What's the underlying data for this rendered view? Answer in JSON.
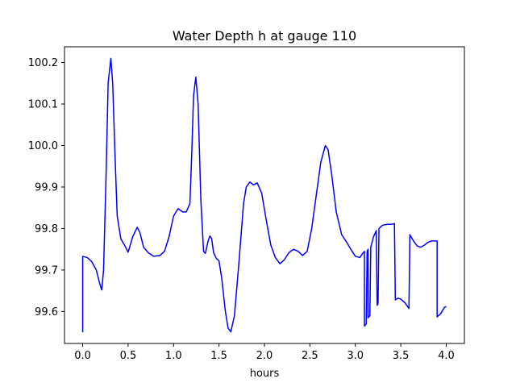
{
  "chart_data": {
    "type": "line",
    "title": "Water Depth h at gauge 110",
    "xlabel": "hours",
    "ylabel": "",
    "xlim": [
      -0.2,
      4.2
    ],
    "ylim": [
      99.523,
      100.238
    ],
    "grid": false,
    "legend": "none",
    "x_ticks": [
      0.0,
      0.5,
      1.0,
      1.5,
      2.0,
      2.5,
      3.0,
      3.5,
      4.0
    ],
    "x_tick_labels": [
      "0.0",
      "0.5",
      "1.0",
      "1.5",
      "2.0",
      "2.5",
      "3.0",
      "3.5",
      "4.0"
    ],
    "y_ticks": [
      99.6,
      99.7,
      99.8,
      99.9,
      100.0,
      100.1,
      100.2
    ],
    "y_tick_labels": [
      "99.6",
      "99.7",
      "99.8",
      "99.9",
      "100.0",
      "100.1",
      "100.2"
    ],
    "series": [
      {
        "color": "#0000ff",
        "points": [
          [
            0.0,
            99.55
          ],
          [
            0.0,
            99.733
          ],
          [
            0.05,
            99.73
          ],
          [
            0.1,
            99.72
          ],
          [
            0.15,
            99.7
          ],
          [
            0.19,
            99.665
          ],
          [
            0.21,
            99.652
          ],
          [
            0.23,
            99.7
          ],
          [
            0.26,
            99.95
          ],
          [
            0.28,
            100.15
          ],
          [
            0.31,
            100.21
          ],
          [
            0.33,
            100.15
          ],
          [
            0.36,
            99.95
          ],
          [
            0.38,
            99.83
          ],
          [
            0.42,
            99.775
          ],
          [
            0.46,
            99.76
          ],
          [
            0.5,
            99.743
          ],
          [
            0.55,
            99.78
          ],
          [
            0.6,
            99.803
          ],
          [
            0.63,
            99.79
          ],
          [
            0.67,
            99.755
          ],
          [
            0.72,
            99.742
          ],
          [
            0.78,
            99.733
          ],
          [
            0.85,
            99.735
          ],
          [
            0.9,
            99.745
          ],
          [
            0.95,
            99.78
          ],
          [
            1.0,
            99.83
          ],
          [
            1.05,
            99.848
          ],
          [
            1.1,
            99.84
          ],
          [
            1.14,
            99.84
          ],
          [
            1.18,
            99.86
          ],
          [
            1.2,
            99.98
          ],
          [
            1.22,
            100.12
          ],
          [
            1.245,
            100.165
          ],
          [
            1.27,
            100.1
          ],
          [
            1.3,
            99.87
          ],
          [
            1.33,
            99.745
          ],
          [
            1.35,
            99.74
          ],
          [
            1.38,
            99.77
          ],
          [
            1.4,
            99.782
          ],
          [
            1.42,
            99.775
          ],
          [
            1.44,
            99.742
          ],
          [
            1.47,
            99.728
          ],
          [
            1.5,
            99.722
          ],
          [
            1.53,
            99.68
          ],
          [
            1.57,
            99.6
          ],
          [
            1.6,
            99.56
          ],
          [
            1.63,
            99.551
          ],
          [
            1.67,
            99.59
          ],
          [
            1.72,
            99.72
          ],
          [
            1.77,
            99.86
          ],
          [
            1.8,
            99.9
          ],
          [
            1.84,
            99.912
          ],
          [
            1.88,
            99.905
          ],
          [
            1.92,
            99.91
          ],
          [
            1.97,
            99.885
          ],
          [
            2.02,
            99.82
          ],
          [
            2.07,
            99.76
          ],
          [
            2.12,
            99.73
          ],
          [
            2.17,
            99.715
          ],
          [
            2.22,
            99.725
          ],
          [
            2.27,
            99.742
          ],
          [
            2.32,
            99.75
          ],
          [
            2.37,
            99.745
          ],
          [
            2.42,
            99.735
          ],
          [
            2.47,
            99.745
          ],
          [
            2.52,
            99.8
          ],
          [
            2.57,
            99.88
          ],
          [
            2.62,
            99.96
          ],
          [
            2.67,
            100.0
          ],
          [
            2.7,
            99.99
          ],
          [
            2.74,
            99.93
          ],
          [
            2.79,
            99.84
          ],
          [
            2.85,
            99.785
          ],
          [
            2.91,
            99.765
          ],
          [
            2.95,
            99.75
          ],
          [
            3.0,
            99.733
          ],
          [
            3.05,
            99.73
          ],
          [
            3.08,
            99.74
          ],
          [
            3.1,
            99.745
          ],
          [
            3.1,
            99.565
          ],
          [
            3.12,
            99.57
          ],
          [
            3.13,
            99.745
          ],
          [
            3.14,
            99.75
          ],
          [
            3.14,
            99.585
          ],
          [
            3.16,
            99.59
          ],
          [
            3.17,
            99.755
          ],
          [
            3.2,
            99.78
          ],
          [
            3.23,
            99.795
          ],
          [
            3.24,
            99.615
          ],
          [
            3.25,
            99.62
          ],
          [
            3.26,
            99.8
          ],
          [
            3.3,
            99.808
          ],
          [
            3.35,
            99.81
          ],
          [
            3.4,
            99.81
          ],
          [
            3.43,
            99.812
          ],
          [
            3.44,
            99.628
          ],
          [
            3.47,
            99.632
          ],
          [
            3.5,
            99.63
          ],
          [
            3.55,
            99.62
          ],
          [
            3.59,
            99.607
          ],
          [
            3.6,
            99.785
          ],
          [
            3.64,
            99.77
          ],
          [
            3.68,
            99.758
          ],
          [
            3.72,
            99.755
          ],
          [
            3.76,
            99.76
          ],
          [
            3.8,
            99.767
          ],
          [
            3.84,
            99.77
          ],
          [
            3.88,
            99.77
          ],
          [
            3.9,
            99.77
          ],
          [
            3.9,
            99.587
          ],
          [
            3.94,
            99.595
          ],
          [
            3.98,
            99.61
          ],
          [
            4.0,
            99.612
          ]
        ]
      }
    ]
  }
}
